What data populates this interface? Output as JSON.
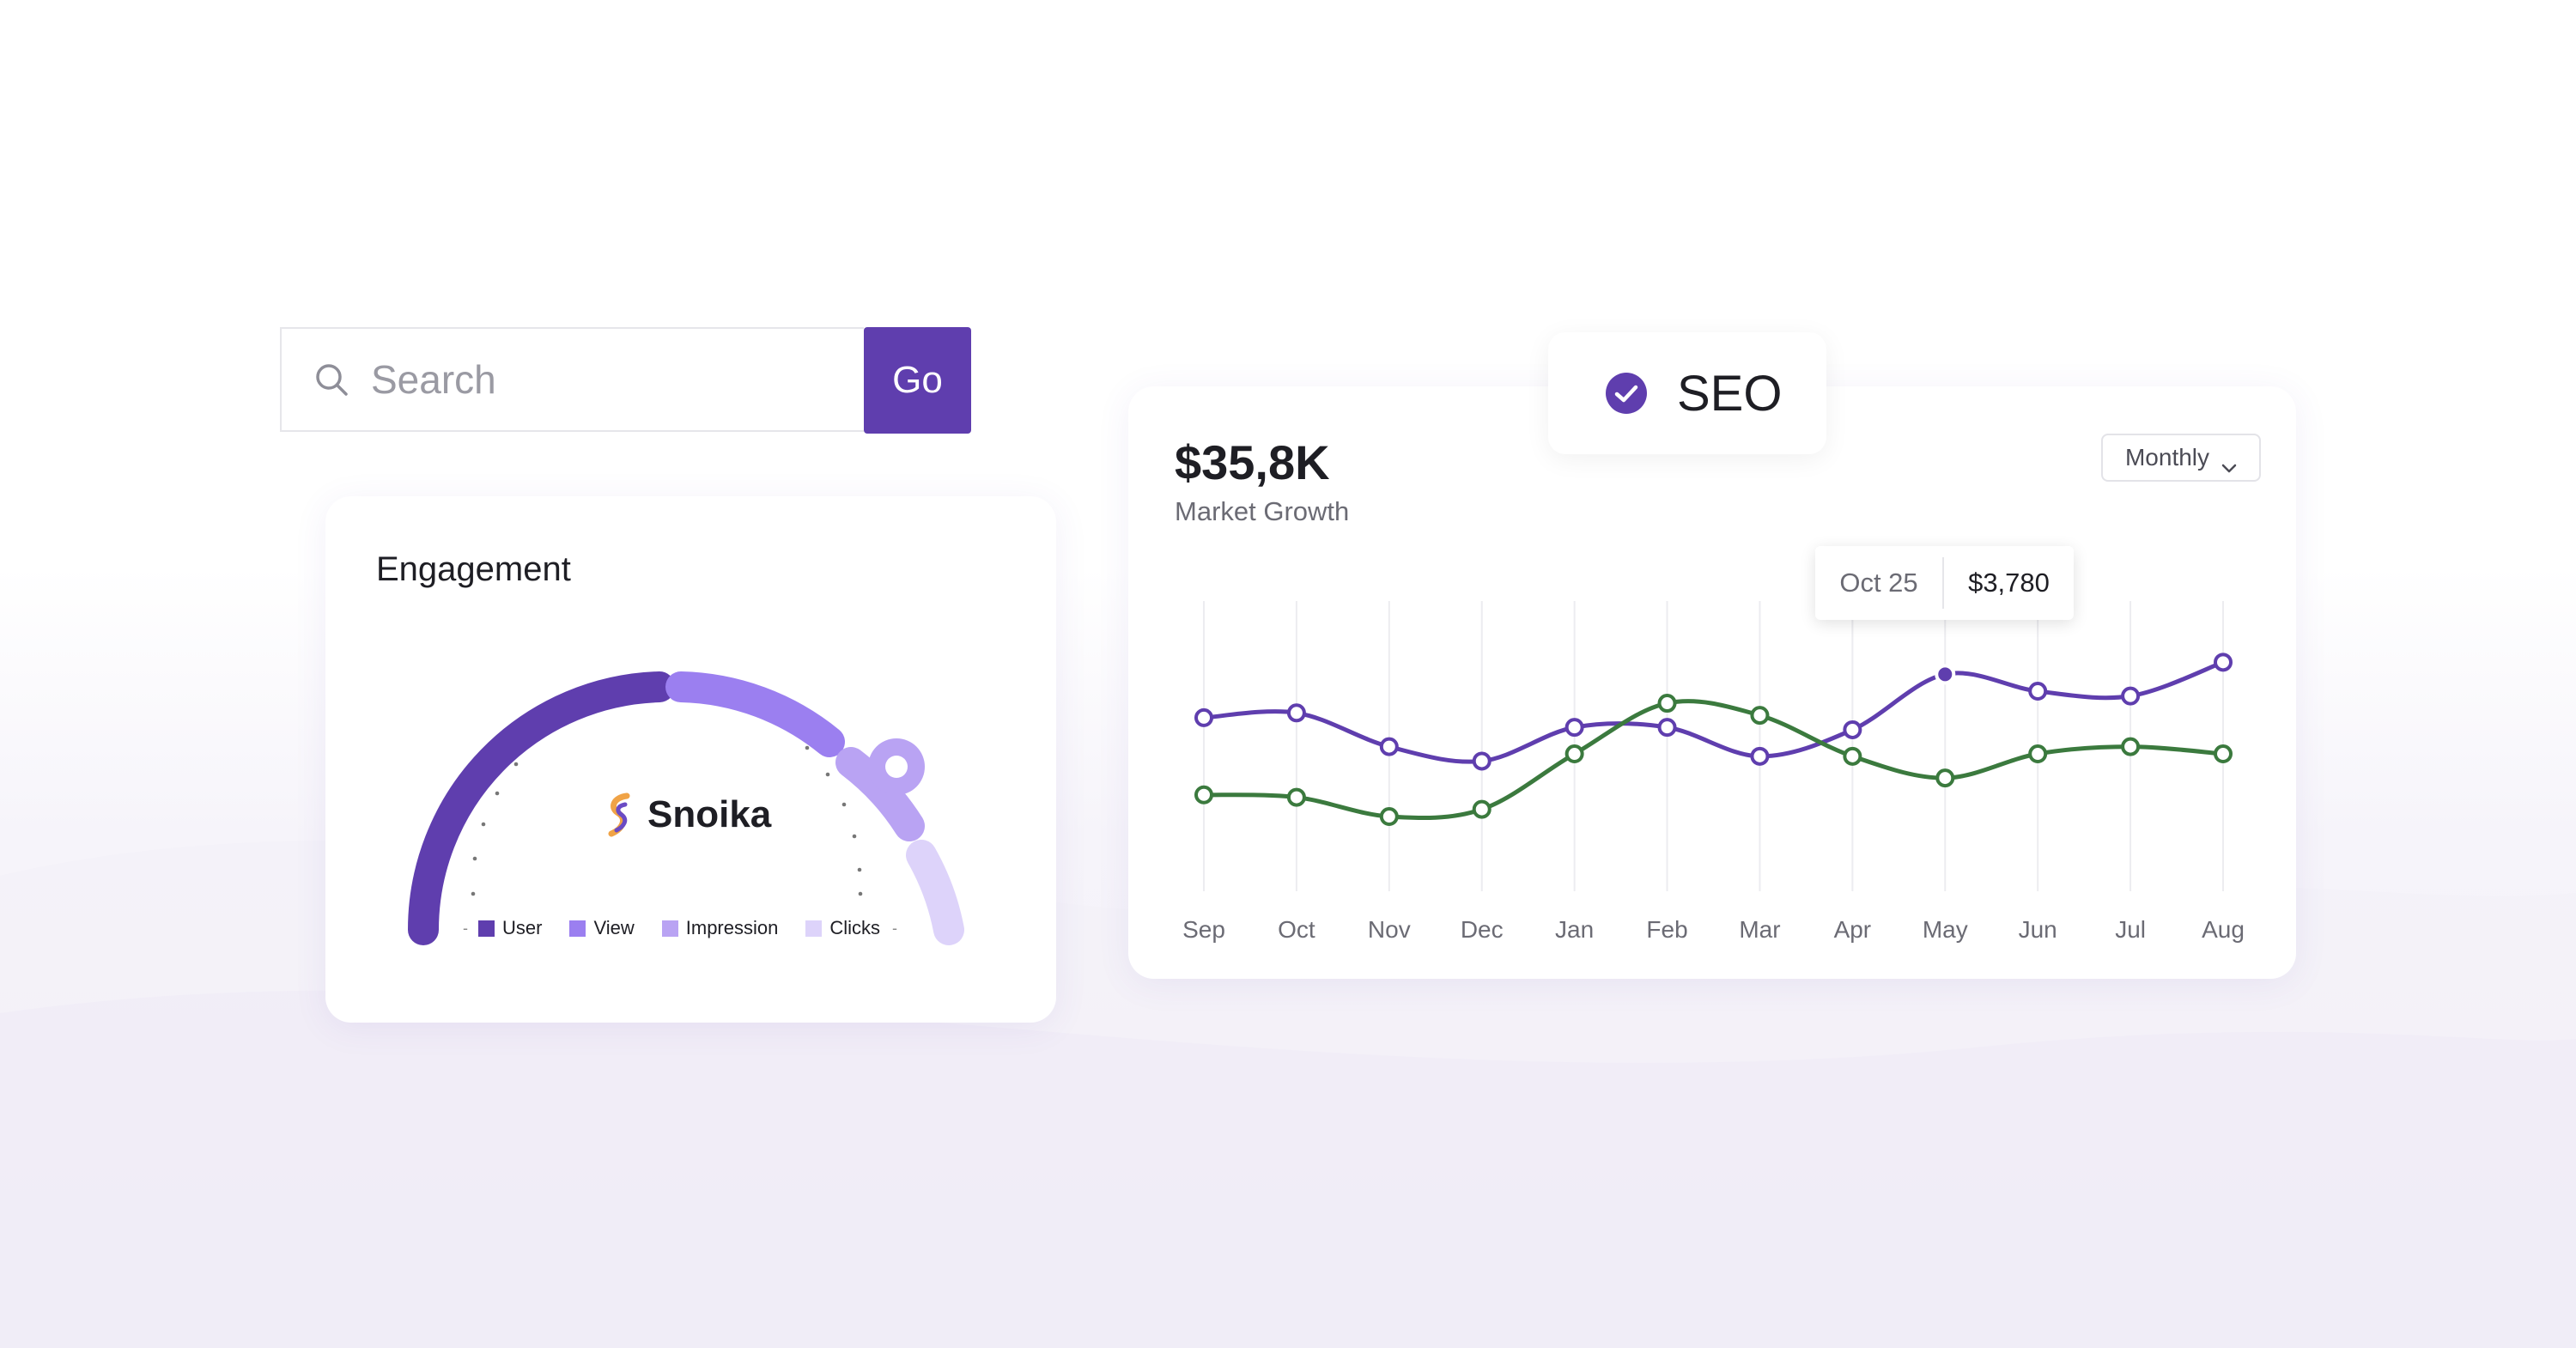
{
  "colors": {
    "accent": "#5f3eae",
    "user": "#5f3eae",
    "view": "#9b7ff0",
    "impression": "#b9a3f3",
    "clicks": "#ddd3fa",
    "series_green": "#3b7a3e"
  },
  "search": {
    "placeholder": "Search",
    "icon": "search-icon",
    "button_label": "Go"
  },
  "engagement": {
    "title": "Engagement",
    "brand": "Snoika",
    "legend": [
      {
        "label": "User",
        "color": "#5f3eae"
      },
      {
        "label": "View",
        "color": "#9b7ff0"
      },
      {
        "label": "Impression",
        "color": "#b9a3f3"
      },
      {
        "label": "Clicks",
        "color": "#ddd3fa"
      }
    ]
  },
  "seo": {
    "label": "SEO",
    "icon": "check-icon"
  },
  "market": {
    "value": "$35,8K",
    "label": "Market Growth",
    "period": "Monthly",
    "tooltip": {
      "date": "Oct 25",
      "value": "$3,780"
    }
  },
  "chart_data": {
    "type": "line",
    "x": [
      "Sep",
      "Oct",
      "Nov",
      "Dec",
      "Jan",
      "Feb",
      "Mar",
      "Apr",
      "May",
      "Jun",
      "Jul",
      "Aug"
    ],
    "series": [
      {
        "color": "#5f3eae",
        "values": [
          62,
          64,
          50,
          44,
          58,
          58,
          46,
          57,
          80,
          73,
          71,
          85
        ]
      },
      {
        "color": "#3b7a3e",
        "values": [
          30,
          29,
          21,
          24,
          47,
          68,
          63,
          46,
          37,
          47,
          50,
          47
        ]
      }
    ],
    "highlight": {
      "series_index": 0,
      "x": "May"
    },
    "grid": "vertical"
  }
}
